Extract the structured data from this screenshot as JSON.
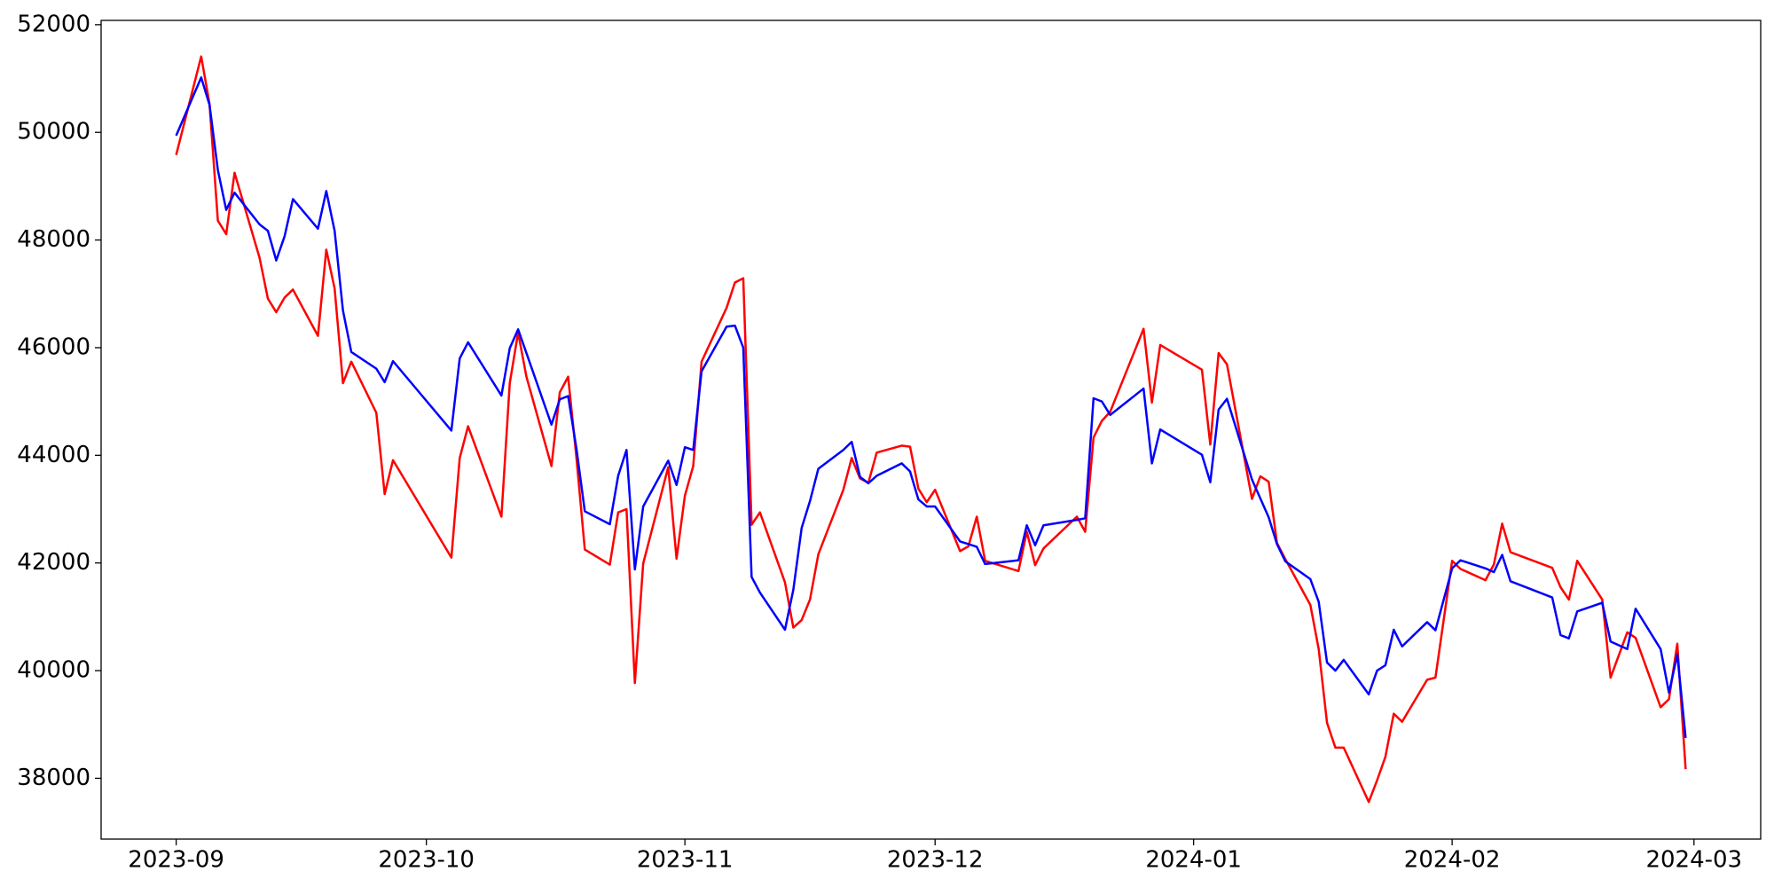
{
  "chart_data": {
    "type": "line",
    "x": [
      0,
      3,
      4,
      5,
      6,
      7,
      10,
      11,
      12,
      13,
      14,
      17,
      18,
      19,
      20,
      21,
      24,
      25,
      26,
      33,
      34,
      35,
      39,
      40,
      41,
      42,
      45,
      46,
      47,
      48,
      49,
      52,
      53,
      54,
      55,
      56,
      59,
      60,
      61,
      62,
      63,
      66,
      67,
      68,
      69,
      70,
      73,
      74,
      75,
      76,
      77,
      80,
      81,
      82,
      83,
      84,
      87,
      88,
      89,
      90,
      91,
      94,
      95,
      96,
      97,
      101,
      102,
      103,
      104,
      108,
      109,
      110,
      111,
      112,
      116,
      117,
      118,
      123,
      124,
      125,
      126,
      129,
      130,
      131,
      132,
      133,
      136,
      137,
      138,
      139,
      140,
      143,
      144,
      145,
      146,
      147,
      150,
      151,
      153,
      154,
      157,
      158,
      159,
      160,
      165,
      166,
      167,
      168,
      171,
      172,
      174,
      175,
      178,
      179,
      180,
      181
    ],
    "series": [
      {
        "color": "red",
        "values": [
          49580,
          51410,
          50530,
          48360,
          48110,
          49250,
          47670,
          46910,
          46660,
          46930,
          47080,
          46220,
          47820,
          47100,
          45340,
          45740,
          44790,
          43280,
          43910,
          42100,
          43950,
          44540,
          42860,
          45340,
          46280,
          45460,
          43800,
          45170,
          45460,
          43950,
          42250,
          41970,
          42940,
          43000,
          39770,
          41990,
          43780,
          42080,
          43250,
          43800,
          45740,
          46740,
          47210,
          47290,
          42710,
          42940,
          41640,
          40800,
          40940,
          41320,
          42160,
          43360,
          43950,
          43570,
          43490,
          44050,
          44180,
          44160,
          43380,
          43130,
          43360,
          42220,
          42310,
          42860,
          42040,
          41850,
          42580,
          41960,
          42270,
          42860,
          42580,
          44330,
          44640,
          44810,
          46350,
          44980,
          46050,
          45590,
          44200,
          45900,
          45690,
          43190,
          43610,
          43510,
          42370,
          42070,
          41220,
          40400,
          39030,
          38570,
          38570,
          37560,
          37960,
          38400,
          39200,
          39050,
          39830,
          39870,
          42040,
          41890,
          41680,
          41970,
          42730,
          42200,
          41910,
          41550,
          41320,
          42040,
          41320,
          39870,
          40710,
          40610,
          39320,
          39470,
          40500,
          38170
        ]
      },
      {
        "color": "blue",
        "values": [
          49940,
          51020,
          50510,
          49300,
          48560,
          48880,
          48290,
          48170,
          47620,
          48070,
          48760,
          48210,
          48910,
          48170,
          46690,
          45920,
          45610,
          45360,
          45750,
          44460,
          45800,
          46100,
          45110,
          45990,
          46340,
          45900,
          44570,
          45040,
          45100,
          44120,
          42960,
          42720,
          43620,
          44100,
          41880,
          43050,
          43900,
          43450,
          44150,
          44100,
          45560,
          46390,
          46410,
          46000,
          41740,
          41450,
          40760,
          41500,
          42650,
          43150,
          43750,
          44100,
          44250,
          43600,
          43480,
          43620,
          43850,
          43700,
          43180,
          43050,
          43050,
          42400,
          42350,
          42300,
          41980,
          42050,
          42700,
          42330,
          42700,
          42800,
          42830,
          45060,
          45000,
          44750,
          45240,
          43850,
          44480,
          44010,
          43500,
          44850,
          45050,
          43550,
          43200,
          42850,
          42350,
          42030,
          41700,
          41280,
          40150,
          40000,
          40200,
          39560,
          40000,
          40100,
          40760,
          40450,
          40900,
          40750,
          41900,
          42050,
          41900,
          41830,
          42150,
          41660,
          41360,
          40660,
          40600,
          41100,
          41260,
          40540,
          40400,
          41150,
          40400,
          39590,
          40300,
          38750
        ]
      }
    ],
    "xlim": [
      -9,
      190
    ],
    "xticks": [
      {
        "value": 0,
        "label": "2023-09"
      },
      {
        "value": 30,
        "label": "2023-10"
      },
      {
        "value": 61,
        "label": "2023-11"
      },
      {
        "value": 91,
        "label": "2023-12"
      },
      {
        "value": 122,
        "label": "2024-01"
      },
      {
        "value": 153,
        "label": "2024-02"
      },
      {
        "value": 182,
        "label": "2024-03"
      }
    ],
    "ylim": [
      36870,
      52080
    ],
    "yticks": [
      38000,
      40000,
      42000,
      44000,
      46000,
      48000,
      50000,
      52000
    ]
  }
}
